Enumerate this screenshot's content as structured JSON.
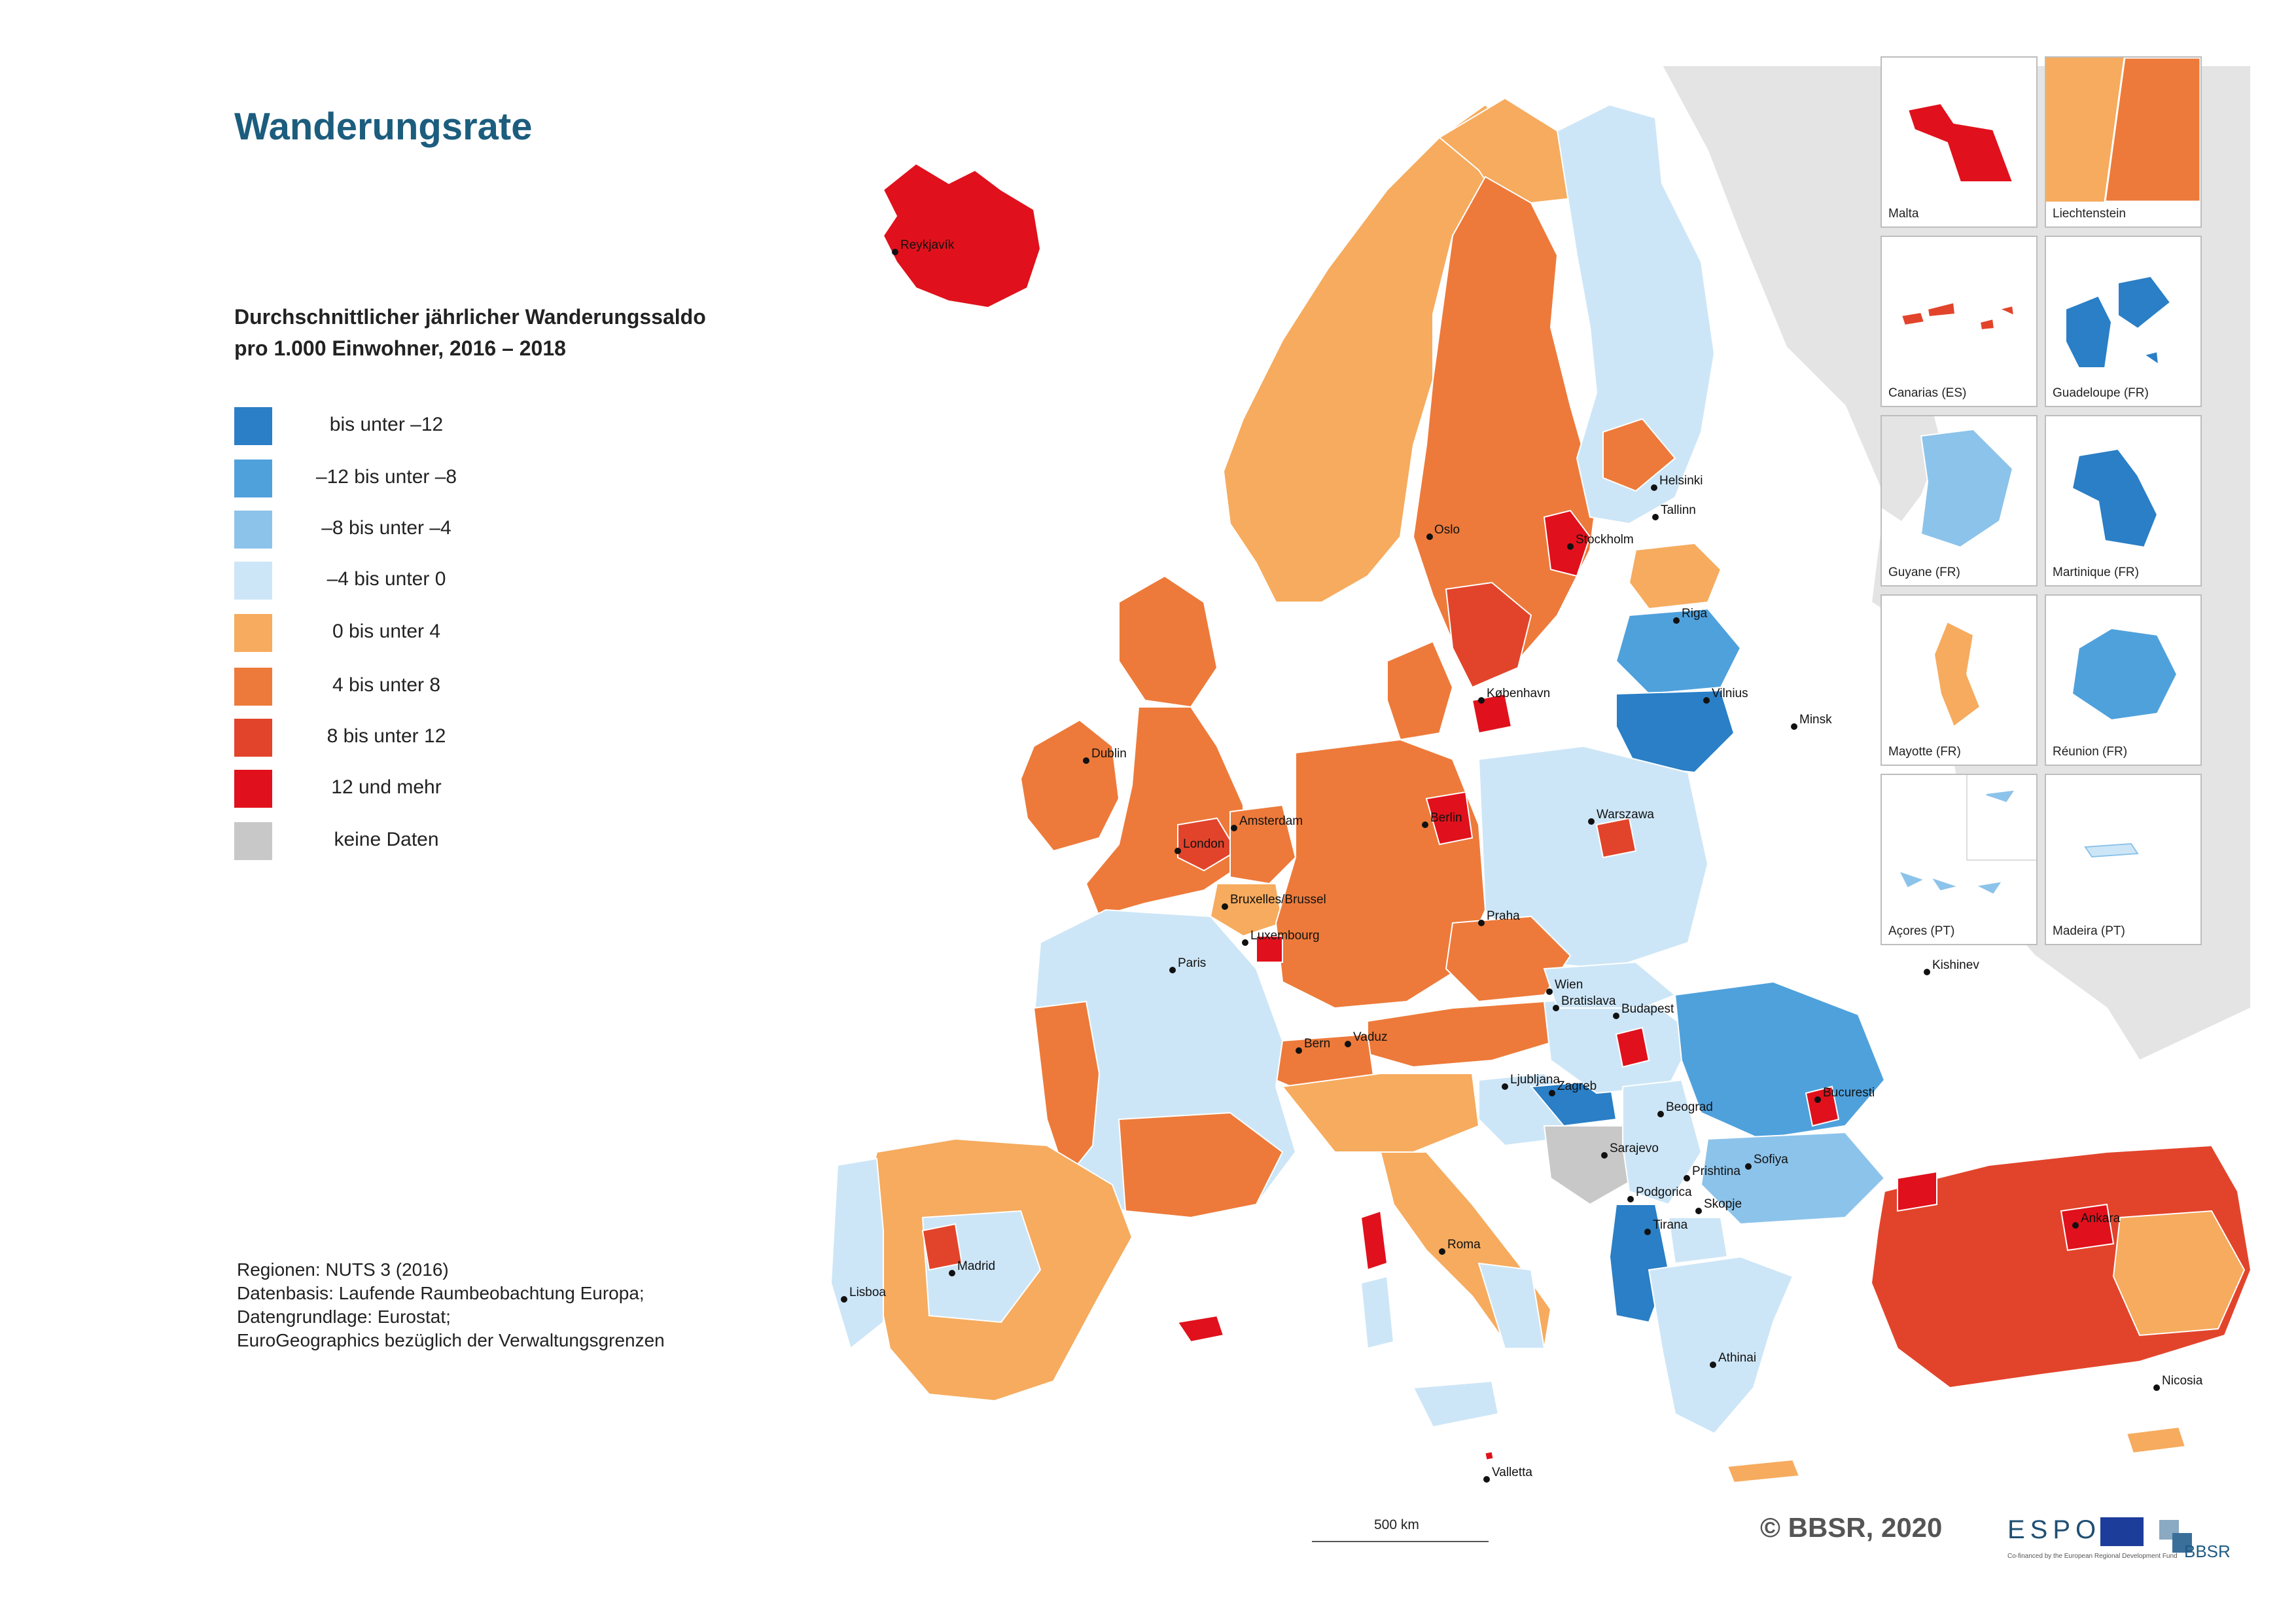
{
  "map_title": "Wanderungsrate",
  "subtitle_line1": "Durchschnittlicher jährlicher Wanderungssaldo",
  "subtitle_line2": "pro 1.000 Einwohner, 2016 – 2018",
  "legend": [
    {
      "label": "bis unter  –12",
      "color": "#2a7fc6"
    },
    {
      "label": "–12 bis unter   –8",
      "color": "#4fa1dc"
    },
    {
      "label": "–8 bis unter   –4",
      "color": "#8cc3ea"
    },
    {
      "label": "–4 bis unter    0",
      "color": "#cde6f7"
    },
    {
      "label": "0 bis unter    4",
      "color": "#f6ab5e"
    },
    {
      "label": "4 bis unter    8",
      "color": "#ed7a3a"
    },
    {
      "label": "8 bis unter   12",
      "color": "#e2442b"
    },
    {
      "label": "12 und mehr",
      "color": "#e0111c"
    },
    {
      "label": "keine Daten",
      "color": "#c8c8c8"
    }
  ],
  "sources": {
    "line1": "Regionen: NUTS 3 (2016)",
    "line2": "Datenbasis: Laufende Raumbeobachtung Europa;",
    "line3": "Datengrundlage: Eurostat;",
    "line4": "EuroGeographics bezüglich der Verwaltungsgrenzen"
  },
  "cities": [
    "Reykjavík",
    "Oslo",
    "Stockholm",
    "Helsinki",
    "Tallinn",
    "Riga",
    "Vilnius",
    "Minsk",
    "København",
    "Dublin",
    "London",
    "Amsterdam",
    "Berlin",
    "Warszawa",
    "Bruxelles/Brussel",
    "Luxembourg",
    "Paris",
    "Praha",
    "Wien",
    "Bratislava",
    "Budapest",
    "Kishinev",
    "Vaduz",
    "Bern",
    "Ljubljana",
    "Zagreb",
    "Beograd",
    "Bucuresti",
    "Sarajevo",
    "Podgorica",
    "Prishtina",
    "Sofiya",
    "Skopje",
    "Tirana",
    "Roma",
    "Madrid",
    "Lisboa",
    "Athinai",
    "Ankara",
    "Nicosia",
    "Valletta"
  ],
  "insets": [
    {
      "label": "Malta",
      "fill": "#e0111c"
    },
    {
      "label": "Liechtenstein",
      "fill": "#f6ab5e"
    },
    {
      "label": "Canarias (ES)",
      "fill": "#e2442b"
    },
    {
      "label": "Guadeloupe (FR)",
      "fill": "#2a7fc6"
    },
    {
      "label": "Guyane (FR)",
      "fill": "#8cc3ea"
    },
    {
      "label": "Martinique (FR)",
      "fill": "#2a7fc6"
    },
    {
      "label": "Mayotte (FR)",
      "fill": "#f6ab5e"
    },
    {
      "label": "Réunion (FR)",
      "fill": "#4fa1dc"
    },
    {
      "label": "Açores (PT)",
      "fill": "#8cc3ea"
    },
    {
      "label": "Madeira (PT)",
      "fill": "#cde6f7"
    }
  ],
  "scale_label": "500 km",
  "copyright": "© BBSR, 2020",
  "logos": {
    "espon": "ESPON",
    "espon_caption": "Co-financed by the European Regional Development Fund",
    "bbsr": "BBSR"
  }
}
